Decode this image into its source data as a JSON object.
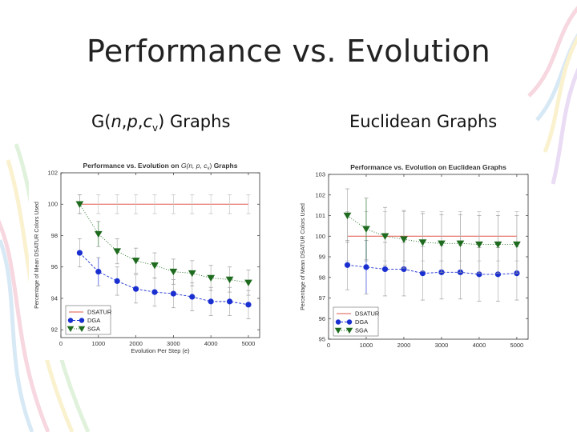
{
  "slide": {
    "title": "Performance vs. Evolution",
    "subtitle_left_parts": [
      "G(",
      "n",
      ",",
      "p",
      ",",
      "c",
      "v",
      ")",
      " Graphs"
    ],
    "subtitle_right": "Euclidean Graphs"
  },
  "colors": {
    "dsatur": "#e05a4e",
    "dga": "#1a2fd0",
    "sga": "#1f6b1f",
    "error": "#999999"
  },
  "chart_data": [
    {
      "type": "line",
      "title_prefix": "Performance vs. Evolution on ",
      "title_math": "G(n, p, c",
      "title_math_sub": "v",
      "title_math_close": ")",
      "title_suffix": " Graphs",
      "xlabel": "Evolution Per Step (e)",
      "ylabel": "Percentage of Mean DSATUR Colors Used",
      "xlim": [
        0,
        5300
      ],
      "ylim": [
        91.5,
        102
      ],
      "xticks": [
        0,
        1000,
        2000,
        3000,
        4000,
        5000
      ],
      "yticks": [
        92,
        94,
        96,
        98,
        100,
        102
      ],
      "grid": false,
      "legend": "bottom-left",
      "series": [
        {
          "name": "DSATUR",
          "style": "line",
          "x": [
            500,
            5000
          ],
          "y": [
            100,
            100
          ],
          "err": [],
          "caps_x": [
            500,
            1000,
            1500,
            2000,
            2500,
            3000,
            3500,
            4000,
            4500,
            5000
          ],
          "cap_half": 0.6
        },
        {
          "name": "DGA",
          "style": "circle",
          "x": [
            500,
            1000,
            1500,
            2000,
            2500,
            3000,
            3500,
            4000,
            4500,
            5000
          ],
          "y": [
            96.9,
            95.7,
            95.1,
            94.6,
            94.4,
            94.3,
            94.1,
            93.8,
            93.8,
            93.6
          ],
          "err": [
            0.9,
            0.9,
            0.9,
            0.9,
            0.9,
            0.9,
            0.9,
            0.9,
            0.9,
            0.9
          ]
        },
        {
          "name": "SGA",
          "style": "triangle",
          "x": [
            500,
            1000,
            1500,
            2000,
            2500,
            3000,
            3500,
            4000,
            4500,
            5000
          ],
          "y": [
            100.0,
            98.1,
            97.0,
            96.4,
            96.1,
            95.7,
            95.6,
            95.3,
            95.2,
            95.0
          ],
          "err": [
            0.6,
            0.8,
            0.8,
            0.8,
            0.8,
            0.8,
            0.8,
            0.8,
            0.8,
            0.8
          ]
        }
      ]
    },
    {
      "type": "line",
      "title_prefix": "Performance vs. Evolution on Euclidean Graphs",
      "title_math": "",
      "title_math_sub": "",
      "title_math_close": "",
      "title_suffix": "",
      "xlabel": "Evolution Per Step (e)",
      "ylabel": "Percentage of Mean DSATUR Colors Used",
      "xlim": [
        0,
        5300
      ],
      "ylim": [
        95,
        103
      ],
      "xticks": [
        0,
        1000,
        2000,
        3000,
        4000,
        5000
      ],
      "yticks": [
        95,
        96,
        97,
        98,
        99,
        100,
        101,
        102,
        103
      ],
      "grid": false,
      "legend": "bottom-left",
      "series": [
        {
          "name": "DSATUR",
          "style": "line",
          "x": [
            500,
            5000
          ],
          "y": [
            100,
            100
          ],
          "err": [],
          "caps_x": [
            500,
            1000,
            1500,
            2000,
            2500,
            3000,
            3500,
            4000,
            4500,
            5000
          ],
          "cap_half": 1.2
        },
        {
          "name": "DGA",
          "style": "circle",
          "x": [
            500,
            1000,
            1500,
            2000,
            2500,
            3000,
            3500,
            4000,
            4500,
            5000
          ],
          "y": [
            98.6,
            98.5,
            98.4,
            98.4,
            98.2,
            98.25,
            98.25,
            98.15,
            98.15,
            98.2
          ],
          "err": [
            1.2,
            1.3,
            1.3,
            1.3,
            1.3,
            1.3,
            1.3,
            1.3,
            1.3,
            1.3
          ]
        },
        {
          "name": "SGA",
          "style": "triangle",
          "x": [
            500,
            1000,
            1500,
            2000,
            2500,
            3000,
            3500,
            4000,
            4500,
            5000
          ],
          "y": [
            101.0,
            100.35,
            100.0,
            99.85,
            99.7,
            99.65,
            99.65,
            99.6,
            99.6,
            99.6
          ],
          "err": [
            1.3,
            1.5,
            1.4,
            1.4,
            1.4,
            1.4,
            1.4,
            1.4,
            1.4,
            1.4
          ]
        }
      ]
    }
  ]
}
